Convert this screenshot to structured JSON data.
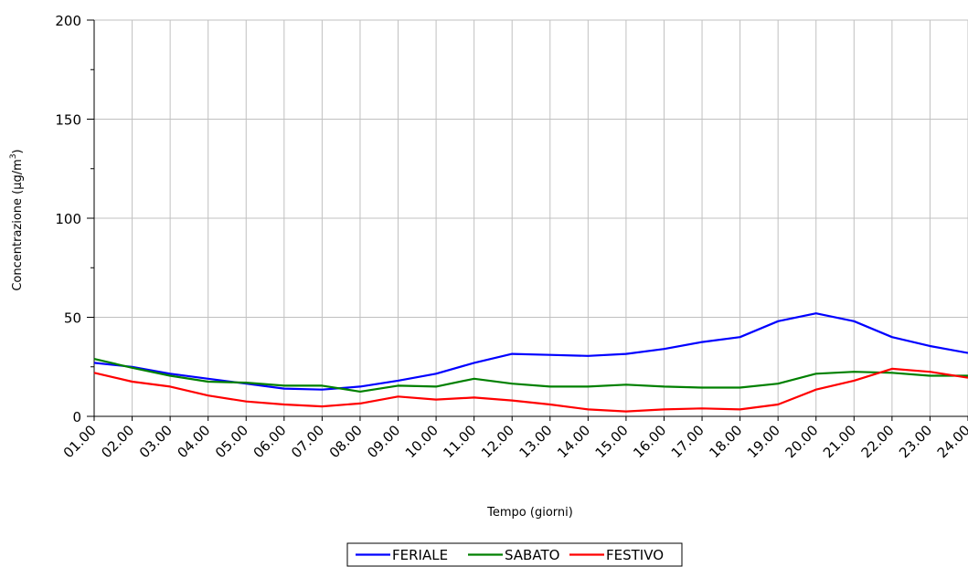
{
  "chart_data": {
    "type": "line",
    "title": "",
    "xlabel": "Tempo (giorni)",
    "ylabel": "Concentrazione (µg/m",
    "ylabel_sup": "3",
    "ylabel_end": ")",
    "ylim": [
      0,
      200
    ],
    "yticks": [
      0,
      50,
      100,
      150,
      200
    ],
    "grid": true,
    "legend_position": "bottom-center",
    "categories": [
      "01.00",
      "02.00",
      "03.00",
      "04.00",
      "05.00",
      "06.00",
      "07.00",
      "08.00",
      "09.00",
      "10.00",
      "11.00",
      "12.00",
      "13.00",
      "14.00",
      "15.00",
      "16.00",
      "17.00",
      "18.00",
      "19.00",
      "20.00",
      "21.00",
      "22.00",
      "23.00",
      "24.00"
    ],
    "series": [
      {
        "name": "FERIALE",
        "color": "#0000ff",
        "values": [
          27,
          25,
          21.5,
          19,
          16.5,
          14,
          13.5,
          15,
          18,
          21.5,
          27,
          31.5,
          31,
          30.5,
          31.5,
          34,
          37.5,
          40,
          48,
          52,
          48,
          40,
          35.5,
          32
        ]
      },
      {
        "name": "SABATO",
        "color": "#008000",
        "values": [
          29,
          24.5,
          20.5,
          17.5,
          17,
          15.5,
          15.5,
          12.5,
          15.5,
          15,
          19,
          16.5,
          15,
          15,
          16,
          15,
          14.5,
          14.5,
          16.5,
          21.5,
          22.5,
          22,
          20.5,
          20.5
        ]
      },
      {
        "name": "FESTIVO",
        "color": "#ff0000",
        "values": [
          22,
          17.5,
          15,
          10.5,
          7.5,
          6,
          5,
          6.5,
          10,
          8.5,
          9.5,
          8,
          6,
          3.5,
          2.5,
          3.5,
          4,
          3.5,
          6,
          13.5,
          18,
          24,
          22.5,
          19.5
        ]
      }
    ]
  }
}
